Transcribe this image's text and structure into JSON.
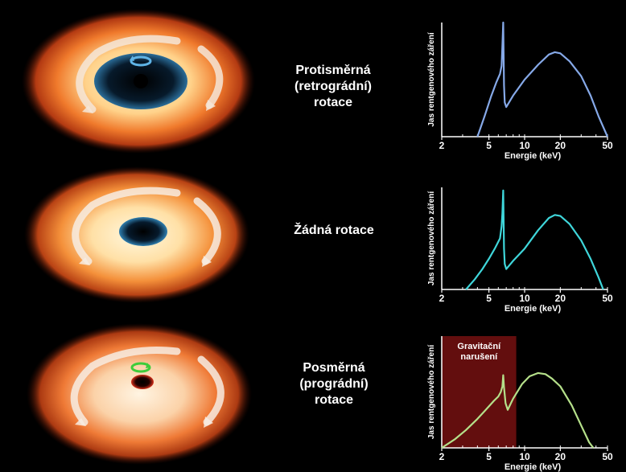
{
  "rows": [
    {
      "label_lines": [
        "Protisměrná",
        "(retrográdní)",
        "rotace"
      ],
      "spin": "retrograde"
    },
    {
      "label_lines": [
        "Žádná rotace"
      ],
      "spin": "none"
    },
    {
      "label_lines": [
        "Posměrná",
        "(prográdní)",
        "rotace"
      ],
      "spin": "prograde"
    }
  ],
  "chart_data": [
    {
      "type": "line",
      "ylabel": "Jas rentgenového záření",
      "xlabel": "Energie (keV)",
      "x_scale": "log",
      "xlim": [
        2,
        50
      ],
      "x_ticks": [
        2,
        5,
        10,
        20,
        50
      ],
      "color": "#86a9e8",
      "series": [
        {
          "x": [
            4.0,
            4.6,
            5.2,
            5.8,
            6.2,
            6.4,
            6.5,
            6.6,
            6.7,
            6.8,
            7.0,
            8.0,
            10.0,
            13.0,
            16.0,
            18.0,
            20.0,
            24.0,
            30.0,
            36.0,
            42.0,
            50.0
          ],
          "y": [
            0.0,
            0.18,
            0.35,
            0.48,
            0.55,
            0.62,
            0.8,
            1.0,
            0.45,
            0.3,
            0.26,
            0.36,
            0.5,
            0.63,
            0.72,
            0.74,
            0.73,
            0.66,
            0.53,
            0.36,
            0.18,
            0.0
          ]
        }
      ]
    },
    {
      "type": "line",
      "ylabel": "Jas rentgenového záření",
      "xlabel": "Energie (keV)",
      "x_scale": "log",
      "xlim": [
        2,
        50
      ],
      "x_ticks": [
        2,
        5,
        10,
        20,
        50
      ],
      "color": "#3fd6da",
      "series": [
        {
          "x": [
            3.2,
            3.8,
            4.4,
            5.0,
            5.6,
            6.2,
            6.4,
            6.5,
            6.6,
            6.7,
            6.8,
            7.0,
            8.0,
            10.0,
            13.0,
            16.0,
            18.0,
            20.0,
            24.0,
            30.0,
            36.0,
            42.0,
            46.0
          ],
          "y": [
            0.0,
            0.1,
            0.2,
            0.3,
            0.4,
            0.5,
            0.62,
            0.75,
            0.97,
            0.4,
            0.25,
            0.2,
            0.28,
            0.4,
            0.58,
            0.7,
            0.73,
            0.72,
            0.64,
            0.48,
            0.3,
            0.12,
            0.0
          ]
        }
      ]
    },
    {
      "type": "line",
      "ylabel": "Jas rentgenového záření",
      "xlabel": "Energie (keV)",
      "x_scale": "log",
      "xlim": [
        2,
        50
      ],
      "x_ticks": [
        2,
        5,
        10,
        20,
        50
      ],
      "color": "#b5e08a",
      "shaded_region": {
        "x": [
          2,
          8.5
        ],
        "label_lines": [
          "Gravitační",
          "narušení"
        ],
        "color": "#6e0f10"
      },
      "series": [
        {
          "x": [
            2.0,
            2.6,
            3.2,
            4.0,
            4.8,
            5.5,
            6.0,
            6.3,
            6.5,
            6.6,
            6.7,
            6.9,
            7.2,
            8.0,
            9.5,
            11.0,
            13.0,
            15.0,
            17.0,
            20.0,
            25.0,
            30.0,
            35.0,
            38.0
          ],
          "y": [
            0.0,
            0.08,
            0.16,
            0.26,
            0.35,
            0.42,
            0.46,
            0.5,
            0.55,
            0.65,
            0.54,
            0.4,
            0.34,
            0.44,
            0.57,
            0.64,
            0.67,
            0.66,
            0.62,
            0.55,
            0.38,
            0.2,
            0.05,
            0.0
          ]
        }
      ]
    }
  ]
}
